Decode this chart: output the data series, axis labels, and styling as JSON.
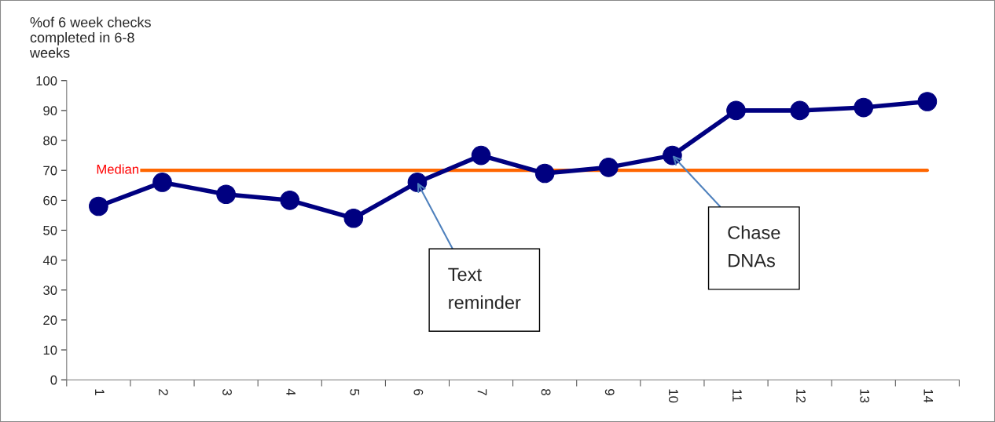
{
  "chart_data": {
    "type": "line",
    "ylabel": "%of 6 week checks\ncompleted in 6-8\nweeks",
    "categories": [
      "1",
      "2",
      "3",
      "4",
      "5",
      "6",
      "7",
      "8",
      "9",
      "10",
      "11",
      "12",
      "13",
      "14"
    ],
    "series": [
      {
        "color": "#000080",
        "values": [
          58,
          66,
          62,
          60,
          54,
          66,
          75,
          69,
          71,
          75,
          90,
          90,
          91,
          93
        ]
      }
    ],
    "ylim": [
      0,
      100
    ],
    "yticks": [
      0,
      10,
      20,
      30,
      40,
      50,
      60,
      70,
      80,
      90,
      100
    ],
    "marker": "circle",
    "line_style": "solid",
    "grid": false,
    "legend": false,
    "ref_lines": [
      {
        "axis": "y",
        "value": 70,
        "label": "Median",
        "color": "#ff6600"
      }
    ],
    "annotations": [
      {
        "text": "Text\nreminder",
        "x": "6",
        "y": 66
      },
      {
        "text": "Chase\nDNAs",
        "x": "10",
        "y": 75
      }
    ]
  }
}
